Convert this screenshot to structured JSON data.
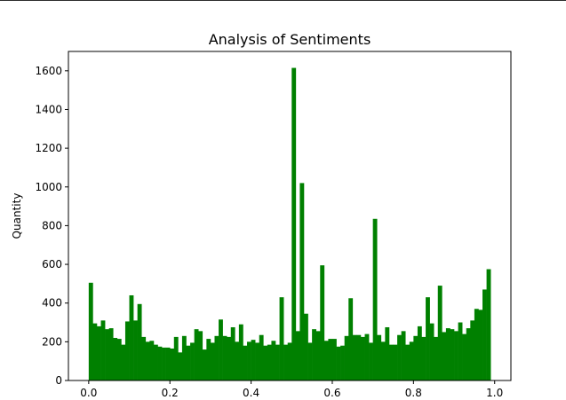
{
  "chart_data": {
    "type": "bar",
    "title": "Analysis of Sentiments",
    "xlabel": "",
    "ylabel": "Quantity",
    "xlim": [
      -0.05,
      1.04
    ],
    "ylim": [
      0,
      1700
    ],
    "grid": false,
    "bar_color": "#008000",
    "bin_start": 0.0,
    "bin_width": 0.01,
    "x_ticks": [
      {
        "value": 0.0,
        "label": "0.0"
      },
      {
        "value": 0.2,
        "label": "0.2"
      },
      {
        "value": 0.4,
        "label": "0.4"
      },
      {
        "value": 0.6,
        "label": "0.6"
      },
      {
        "value": 0.8,
        "label": "0.8"
      },
      {
        "value": 1.0,
        "label": "1.0"
      }
    ],
    "y_ticks": [
      {
        "value": 0,
        "label": "0"
      },
      {
        "value": 200,
        "label": "200"
      },
      {
        "value": 400,
        "label": "400"
      },
      {
        "value": 600,
        "label": "600"
      },
      {
        "value": 800,
        "label": "800"
      },
      {
        "value": 1000,
        "label": "1000"
      },
      {
        "value": 1200,
        "label": "1200"
      },
      {
        "value": 1400,
        "label": "1400"
      },
      {
        "value": 1600,
        "label": "1600"
      }
    ],
    "values": [
      505,
      295,
      280,
      310,
      265,
      270,
      220,
      215,
      185,
      305,
      440,
      310,
      395,
      225,
      200,
      205,
      185,
      175,
      170,
      170,
      165,
      225,
      145,
      230,
      180,
      195,
      265,
      255,
      160,
      215,
      195,
      230,
      315,
      230,
      225,
      275,
      200,
      290,
      180,
      200,
      210,
      195,
      235,
      180,
      185,
      205,
      185,
      430,
      185,
      195,
      1615,
      255,
      1020,
      345,
      195,
      265,
      255,
      595,
      205,
      215,
      215,
      175,
      180,
      230,
      425,
      235,
      235,
      225,
      240,
      195,
      835,
      235,
      200,
      275,
      185,
      185,
      235,
      255,
      185,
      200,
      230,
      280,
      225,
      430,
      295,
      225,
      490,
      250,
      270,
      265,
      255,
      300,
      240,
      270,
      310,
      370,
      365,
      470,
      575
    ]
  }
}
